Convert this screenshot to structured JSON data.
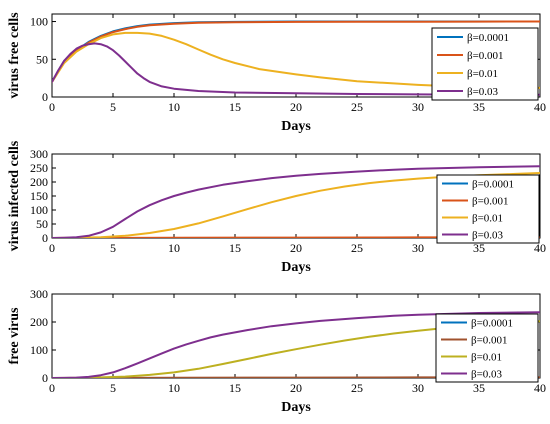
{
  "chart_data": [
    {
      "type": "line",
      "xlabel": "Days",
      "ylabel": "virus free cells",
      "xlim": [
        0,
        40
      ],
      "ylim": [
        0,
        110
      ],
      "xticks": [
        "0",
        "5",
        "10",
        "15",
        "20",
        "25",
        "30",
        "35",
        "40"
      ],
      "yticks": [
        "0",
        "50",
        "100"
      ],
      "ytick_values": [
        0,
        50,
        100
      ],
      "legend_position": "right",
      "series": [
        {
          "name": "β=0.0001",
          "color": "#0072BD",
          "x": [
            0,
            1,
            2,
            3,
            4,
            5,
            6,
            7,
            8,
            10,
            12,
            15,
            20,
            25,
            30,
            35,
            40
          ],
          "y": [
            20,
            48,
            62,
            73,
            81,
            87,
            91,
            94,
            96,
            98,
            99,
            99.5,
            100,
            100,
            100,
            100,
            100
          ]
        },
        {
          "name": "β=0.001",
          "color": "#D95319",
          "x": [
            0,
            1,
            2,
            3,
            4,
            5,
            6,
            7,
            8,
            10,
            12,
            15,
            20,
            25,
            30,
            35,
            40
          ],
          "y": [
            20,
            47,
            61,
            72,
            80,
            86,
            90,
            93,
            95,
            97,
            98.5,
            99,
            99.5,
            99.7,
            99.8,
            99.9,
            100
          ]
        },
        {
          "name": "β=0.01",
          "color": "#EDB120",
          "x": [
            0,
            1,
            2,
            3,
            4,
            5,
            6,
            7,
            8,
            9,
            10,
            11,
            12,
            13,
            14,
            15,
            17,
            20,
            22,
            25,
            28,
            30,
            33,
            35,
            37,
            40
          ],
          "y": [
            20,
            45,
            60,
            70,
            78,
            83,
            85,
            85,
            84,
            81,
            76,
            70,
            63,
            56,
            50,
            45,
            37,
            30,
            26,
            21,
            18,
            16,
            14,
            13,
            12.5,
            12
          ]
        },
        {
          "name": "β=0.03",
          "color": "#7E2F8E",
          "x": [
            0,
            0.5,
            1,
            1.5,
            2,
            2.5,
            3,
            3.5,
            4,
            4.5,
            5,
            5.5,
            6,
            6.5,
            7,
            7.5,
            8,
            9,
            10,
            12,
            15,
            20,
            25,
            30,
            35,
            40
          ],
          "y": [
            20,
            35,
            48,
            57,
            64,
            68,
            70,
            71,
            70,
            67,
            62,
            55,
            47,
            39,
            31,
            25,
            20,
            14,
            11,
            8,
            6,
            5,
            4,
            3.5,
            3,
            3
          ]
        }
      ]
    },
    {
      "type": "line",
      "xlabel": "Days",
      "ylabel": "virus infected cells",
      "xlim": [
        0,
        40
      ],
      "ylim": [
        0,
        300
      ],
      "xticks": [
        "0",
        "5",
        "10",
        "15",
        "20",
        "25",
        "30",
        "35",
        "40"
      ],
      "yticks": [
        "0",
        "100",
        "200",
        "300"
      ],
      "ytick_values": [
        0,
        100,
        200,
        300
      ],
      "yticks_minor": [
        "50",
        "150",
        "250"
      ],
      "yticks_minor_values": [
        50,
        150,
        250
      ],
      "legend_position": "right",
      "series": [
        {
          "name": "β=0.0001",
          "color": "#0072BD",
          "x": [
            0,
            10,
            20,
            30,
            40
          ],
          "y": [
            0,
            0,
            0,
            0,
            0
          ]
        },
        {
          "name": "β=0.001",
          "color": "#D95319",
          "x": [
            0,
            5,
            10,
            20,
            30,
            40
          ],
          "y": [
            0,
            0.5,
            1,
            1.5,
            2,
            2
          ]
        },
        {
          "name": "β=0.01",
          "color": "#EDB120",
          "x": [
            0,
            2,
            4,
            6,
            8,
            10,
            12,
            14,
            16,
            18,
            20,
            22,
            24,
            26,
            28,
            30,
            32,
            35,
            38,
            40
          ],
          "y": [
            0,
            1,
            3,
            8,
            18,
            32,
            52,
            77,
            103,
            128,
            150,
            169,
            184,
            196,
            205,
            212,
            218,
            224,
            229,
            232
          ]
        },
        {
          "name": "β=0.03",
          "color": "#7E2F8E",
          "x": [
            0,
            1,
            2,
            3,
            4,
            5,
            6,
            7,
            8,
            9,
            10,
            11,
            12,
            14,
            16,
            18,
            20,
            22,
            25,
            28,
            30,
            35,
            40
          ],
          "y": [
            0,
            1,
            3,
            8,
            20,
            40,
            68,
            95,
            117,
            135,
            150,
            162,
            173,
            190,
            203,
            214,
            222,
            229,
            237,
            244,
            247,
            253,
            256
          ]
        }
      ]
    },
    {
      "type": "line",
      "xlabel": "Days",
      "ylabel": "free virus",
      "xlim": [
        0,
        40
      ],
      "ylim": [
        0,
        300
      ],
      "xticks": [
        "0",
        "5",
        "10",
        "15",
        "20",
        "25",
        "30",
        "35",
        "40"
      ],
      "yticks": [
        "0",
        "100",
        "200",
        "300"
      ],
      "ytick_values": [
        0,
        100,
        200,
        300
      ],
      "legend_position": "right",
      "series": [
        {
          "name": "β=0.0001",
          "color": "#0072BD",
          "x": [
            0,
            10,
            20,
            30,
            40
          ],
          "y": [
            0,
            0,
            0,
            0,
            0
          ]
        },
        {
          "name": "β=0.001",
          "color": "#A0522D",
          "x": [
            0,
            5,
            10,
            20,
            30,
            40
          ],
          "y": [
            0,
            0.5,
            1,
            1.5,
            2,
            2
          ]
        },
        {
          "name": "β=0.01",
          "color": "#BDB020",
          "x": [
            0,
            2,
            4,
            6,
            8,
            10,
            12,
            14,
            16,
            18,
            20,
            22,
            24,
            26,
            28,
            30,
            32,
            35,
            38,
            40
          ],
          "y": [
            0,
            0.5,
            2,
            5,
            11,
            20,
            33,
            50,
            68,
            86,
            103,
            119,
            134,
            147,
            159,
            169,
            178,
            189,
            198,
            203
          ]
        },
        {
          "name": "β=0.03",
          "color": "#7E2F8E",
          "x": [
            0,
            1,
            2,
            3,
            4,
            5,
            6,
            7,
            8,
            9,
            10,
            11,
            12,
            13,
            14,
            15,
            16,
            18,
            20,
            22,
            25,
            28,
            30,
            35,
            40
          ],
          "y": [
            0,
            0.5,
            1.5,
            4,
            10,
            20,
            35,
            52,
            70,
            88,
            105,
            120,
            133,
            145,
            155,
            163,
            171,
            185,
            195,
            204,
            214,
            222,
            226,
            232,
            235
          ]
        }
      ]
    }
  ]
}
